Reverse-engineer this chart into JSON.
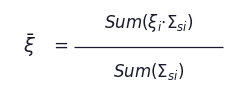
{
  "formula_left": "$\\bar{\\xi}$",
  "formula_eq": "$=$",
  "formula_num": "$Sum(\\xi_i{\\cdot}\\Sigma_{si})$",
  "formula_den": "$Sum(\\Sigma_{si})$",
  "background_color": "#ffffff",
  "text_color": "#1a1a2e",
  "fontsize": 13,
  "figwidth": 2.3,
  "figheight": 0.94,
  "dpi": 100
}
